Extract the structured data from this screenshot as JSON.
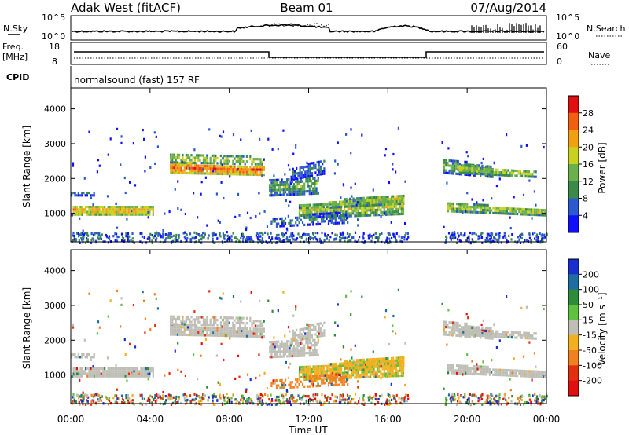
{
  "header": {
    "station": "Adak West (fitACF)",
    "beam": "Beam 01",
    "date": "07/Aug/2014"
  },
  "top_panels": {
    "nsky_label": "N.Sky",
    "nsearch_label": "N.Search",
    "noise_ticks": [
      "10^5",
      "10^0"
    ],
    "freq_label": "Freq.",
    "freq_unit": "[MHz]",
    "freq_ticks": [
      "18",
      "8"
    ],
    "nave_label": "Nave",
    "nave_ticks": [
      "60",
      "0"
    ],
    "cpid_label": "CPID",
    "cpid_text": "normalsound (fast) 157 RF"
  },
  "chart_data": [
    {
      "type": "heatmap",
      "title": "",
      "ylabel": "Slant Range [km]",
      "xlabel": "",
      "ylim": [
        180,
        4600
      ],
      "yticks": [
        "1000",
        "2000",
        "3000",
        "4000"
      ],
      "colorbar_label": "Power [dB]",
      "colorbar_ticks": [
        "28",
        "24",
        "20",
        "16",
        "12",
        "8",
        "4"
      ],
      "colors": [
        "#1010ff",
        "#2a5acd",
        "#3a8a4a",
        "#6ab04c",
        "#c8d020",
        "#f0a010",
        "#f06010",
        "#e01010"
      ]
    },
    {
      "type": "heatmap",
      "title": "",
      "ylabel": "Slant Range [km]",
      "xlabel": "Time UT",
      "ylim": [
        180,
        4600
      ],
      "yticks": [
        "1000",
        "2000",
        "3000",
        "4000"
      ],
      "xticks": [
        "00:00",
        "04:00",
        "08:00",
        "12:00",
        "16:00",
        "20:00",
        "00:00"
      ],
      "colorbar_label": "Velocity [m s⁻¹]",
      "colorbar_ticks": [
        "200",
        "100",
        "50",
        "15",
        "-15",
        "-50",
        "-100",
        "-200"
      ],
      "colors": [
        "#1a2fcf",
        "#1e6fa0",
        "#2e8b3a",
        "#60c040",
        "#bebeb6",
        "#f0b020",
        "#f08020",
        "#e03010",
        "#e01010"
      ]
    }
  ]
}
